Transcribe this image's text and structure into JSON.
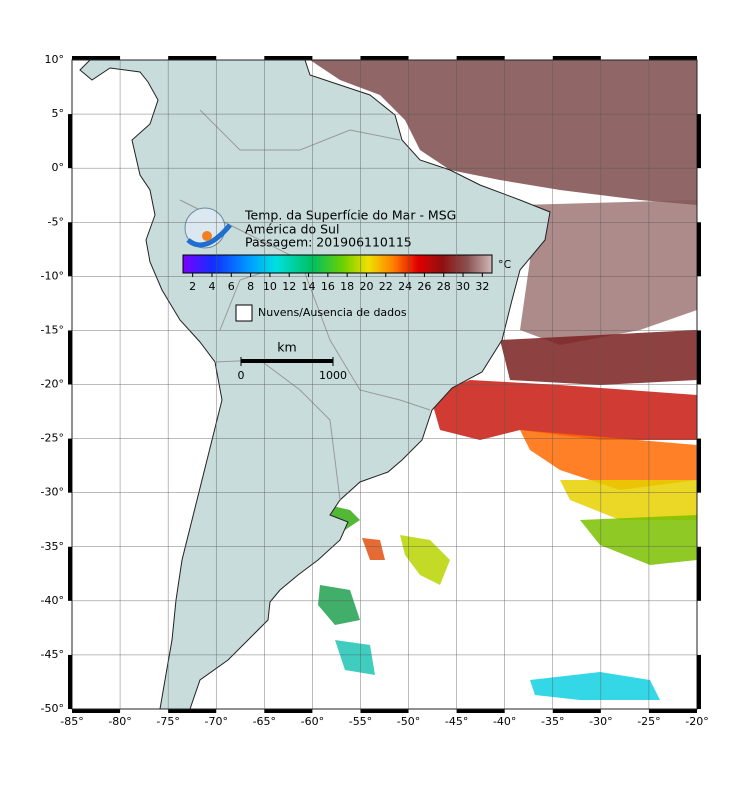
{
  "map": {
    "title_lines": [
      "Temp. da Superfície do Mar - MSG",
      "América do Sul",
      "Passagem: 201906110115"
    ],
    "colorbar": {
      "unit": "°C",
      "range": [
        1,
        33
      ],
      "ticks": [
        2,
        4,
        6,
        8,
        10,
        12,
        14,
        16,
        18,
        20,
        22,
        24,
        26,
        28,
        30,
        32
      ]
    },
    "legend": "Nuvens/Ausencia de dados",
    "scale_bar": {
      "unit": "km",
      "ticks": [
        0,
        1000
      ]
    },
    "lon_range": [
      -85,
      -20
    ],
    "lat_range": [
      -50,
      10
    ],
    "lon_ticks": [
      {
        "value": -85,
        "label": "-85°"
      },
      {
        "value": -80,
        "label": "-80°"
      },
      {
        "value": -75,
        "label": "-75°"
      },
      {
        "value": -70,
        "label": "-70°"
      },
      {
        "value": -65,
        "label": "-65°"
      },
      {
        "value": -60,
        "label": "-60°"
      },
      {
        "value": -55,
        "label": "-55°"
      },
      {
        "value": -50,
        "label": "-50°"
      },
      {
        "value": -45,
        "label": "-45°"
      },
      {
        "value": -40,
        "label": "-40°"
      },
      {
        "value": -35,
        "label": "-35°"
      },
      {
        "value": -30,
        "label": "-30°"
      },
      {
        "value": -25,
        "label": "-25°"
      },
      {
        "value": -20,
        "label": "-20°"
      }
    ],
    "lat_ticks": [
      {
        "value": 10,
        "label": "10°"
      },
      {
        "value": 5,
        "label": "5°"
      },
      {
        "value": 0,
        "label": "0°"
      },
      {
        "value": -5,
        "label": "-5°"
      },
      {
        "value": -10,
        "label": "-10°"
      },
      {
        "value": -15,
        "label": "-15°"
      },
      {
        "value": -20,
        "label": "-20°"
      },
      {
        "value": -25,
        "label": "-25°"
      },
      {
        "value": -30,
        "label": "-30°"
      },
      {
        "value": -35,
        "label": "-35°"
      },
      {
        "value": -40,
        "label": "-40°"
      },
      {
        "value": -45,
        "label": "-45°"
      },
      {
        "value": -50,
        "label": "-50°"
      }
    ]
  }
}
